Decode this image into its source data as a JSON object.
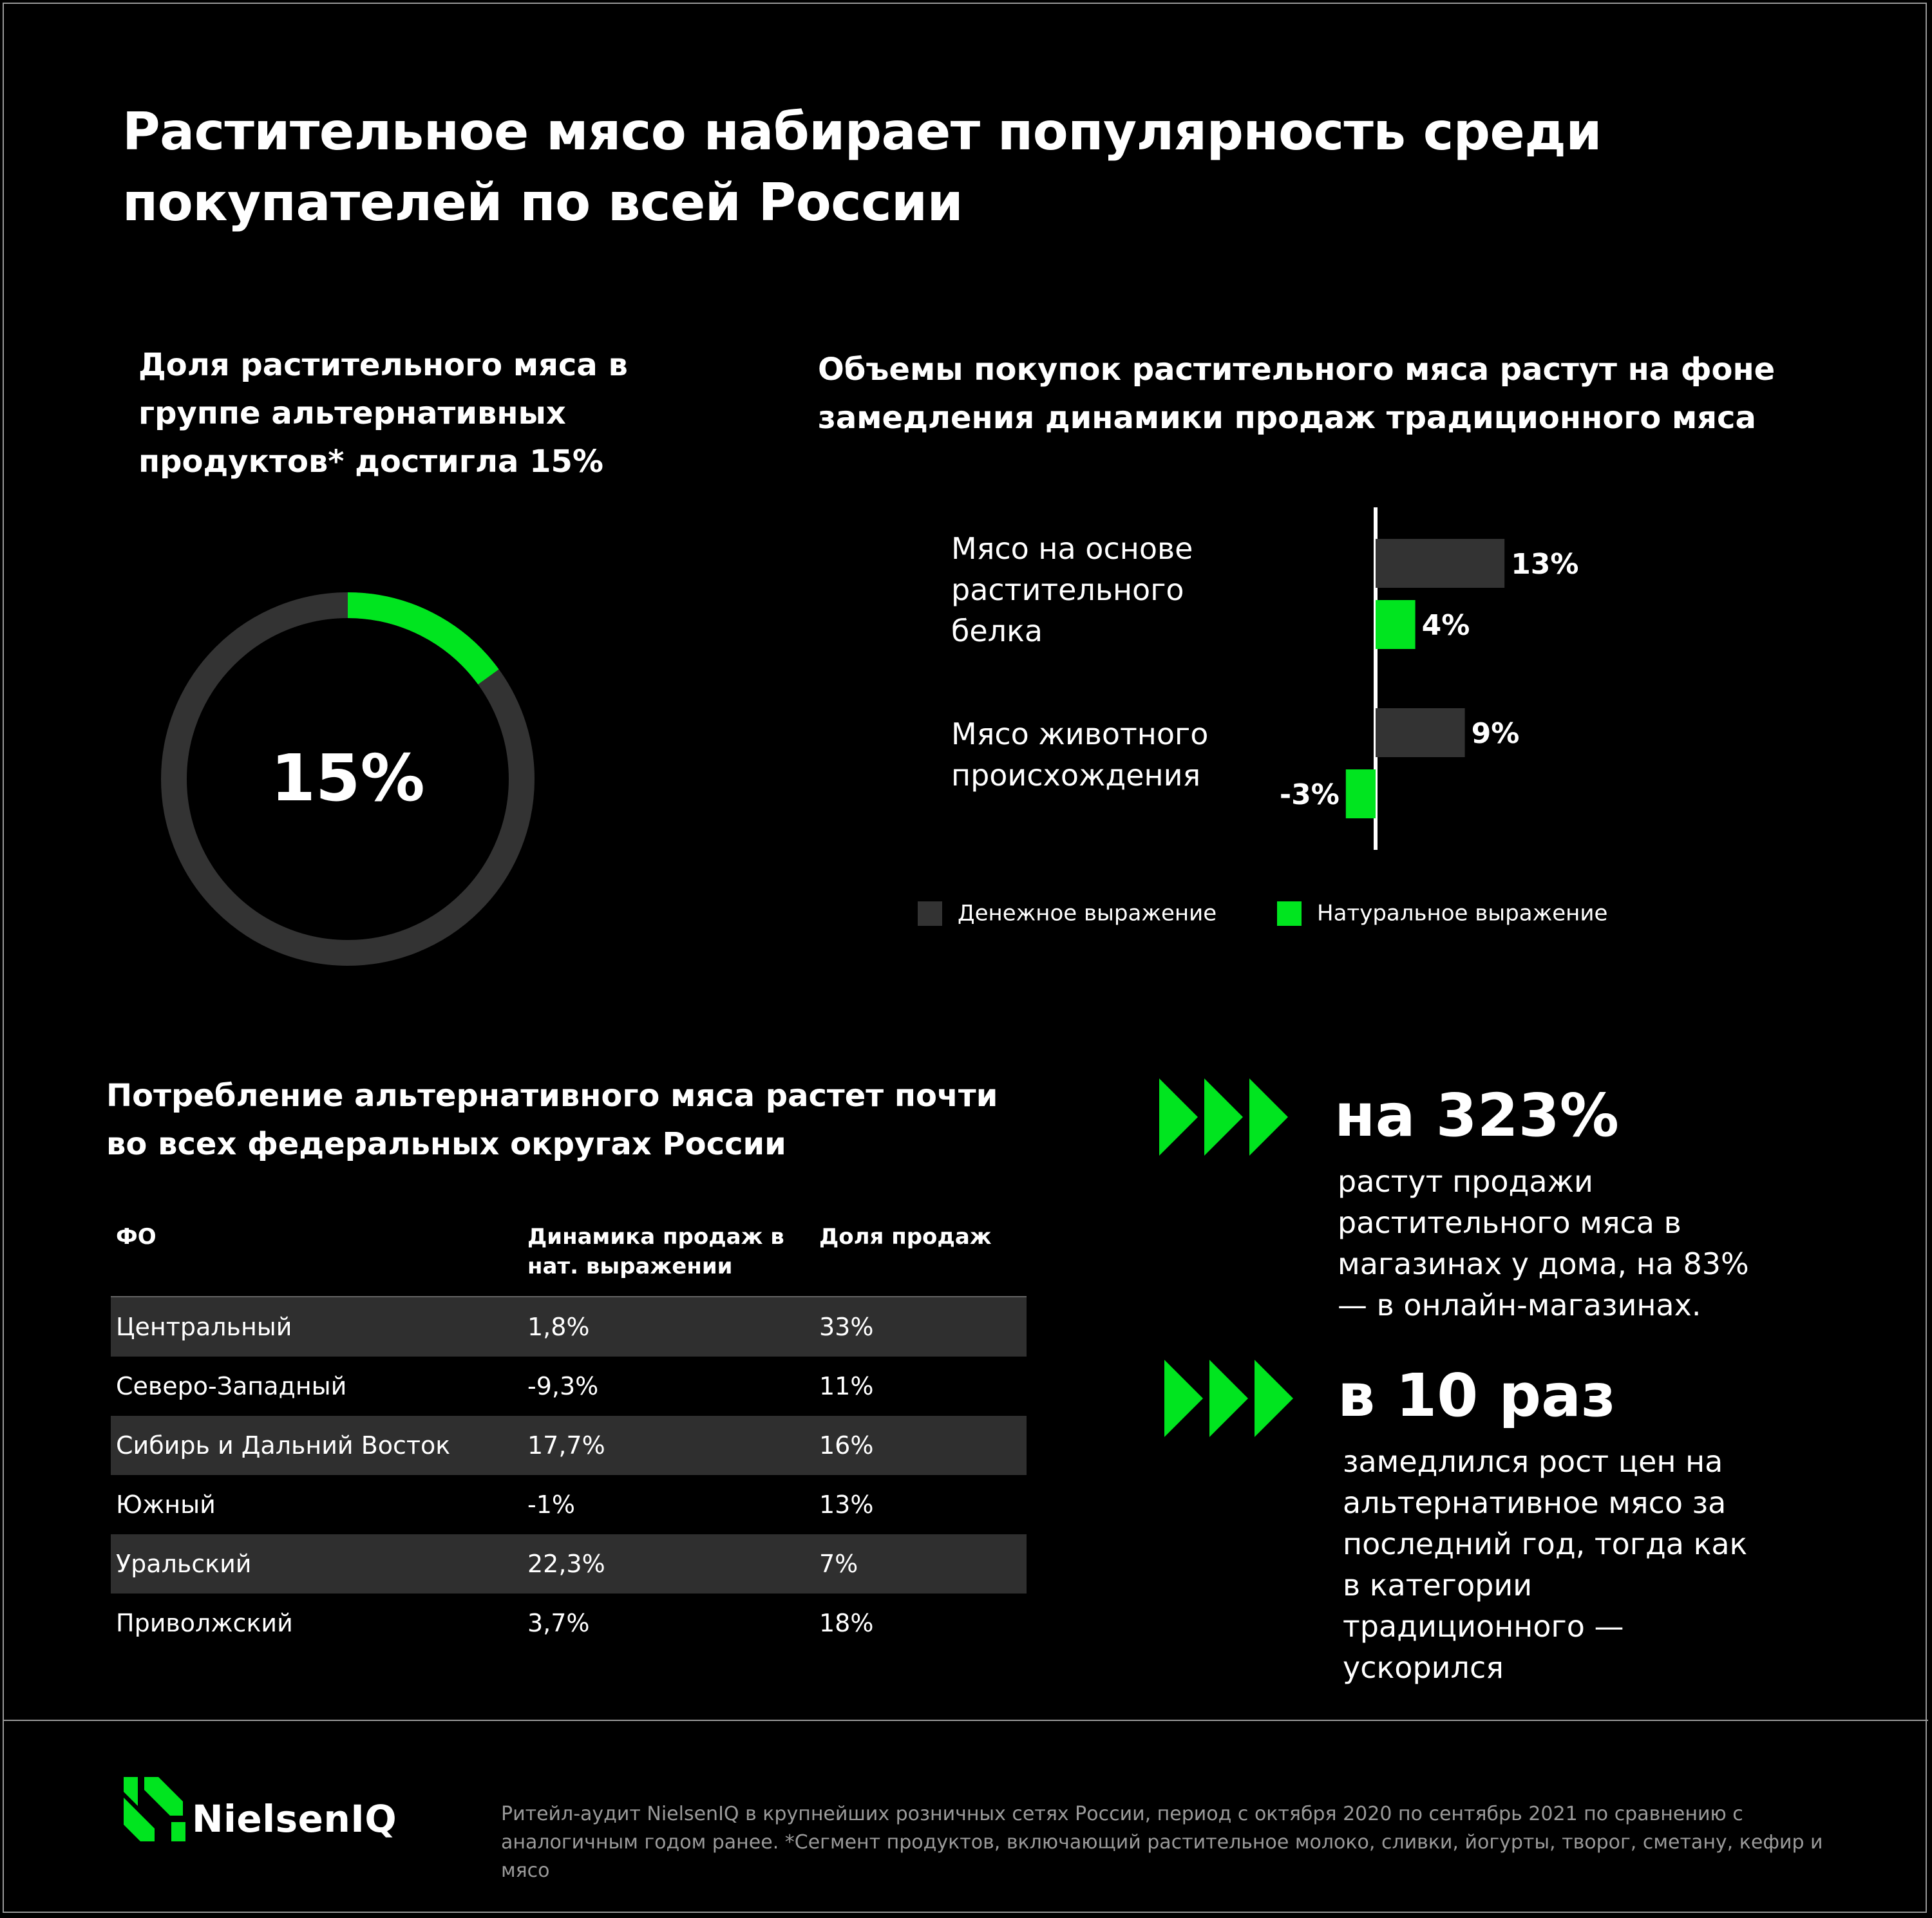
{
  "title": "Растительное мясо набирает популярность среди покупателей по всей России",
  "colors": {
    "accent": "#00e51f",
    "dark_bar": "#333333",
    "track": "#333333",
    "background": "#000000",
    "muted_text": "#9a9a9a"
  },
  "donut": {
    "title": "Доля растительного мяса в группе альтернативных продуктов* достигла 15%",
    "value_label": "15%"
  },
  "bars": {
    "title": "Объемы покупок растительного мяса растут на фоне замедления динамики продаж традиционного мяса",
    "legend": [
      "Денежное выражение",
      "Натуральное выражение"
    ]
  },
  "table": {
    "title": "Потребление альтернативного мяса растет почти во всех федеральных округах России",
    "headers": [
      "ФО",
      "Динамика продаж в нат. выражении",
      "Доля продаж"
    ],
    "rows": [
      [
        "Центральный",
        "1,8%",
        "33%"
      ],
      [
        "Северо-Западный",
        "-9,3%",
        "11%"
      ],
      [
        "Сибирь и Дальний Восток",
        "17,7%",
        "16%"
      ],
      [
        "Южный",
        "-1%",
        "13%"
      ],
      [
        "Уральский",
        "22,3%",
        "7%"
      ],
      [
        "Приволжский",
        "3,7%",
        "18%"
      ]
    ]
  },
  "stats": [
    {
      "icon": "triple-chevron-icon",
      "value": "на 323%",
      "description": "растут продажи растительного мяса в магазинах у дома, на 83% — в онлайн-магазинах."
    },
    {
      "icon": "triple-chevron-icon",
      "value": "в 10 раз",
      "description": "замедлился рост цен на альтернативное мясо за последний год, тогда как в категории традиционного — ускорился"
    }
  ],
  "footer": {
    "logo_text": "NielsenIQ",
    "footnote": "Ритейл-аудит NielsenIQ в крупнейших розничных сетях России, период с октября 2020 по сентябрь 2021 по сравнению с аналогичным годом ранее. *Сегмент продуктов, включающий растительное молоко, сливки, йогурты, творог, сметану, кефир и мясо"
  },
  "chart_data": [
    {
      "type": "pie",
      "title": "Доля растительного мяса в группе альтернативных продуктов* достигла 15%",
      "slices": [
        {
          "label": "Растительное мясо",
          "value": 15
        },
        {
          "label": "",
          "value": 85
        }
      ],
      "center_label": "15%"
    },
    {
      "type": "bar",
      "orientation": "horizontal",
      "title": "Объемы покупок растительного мяса растут на фоне замедления динамики продаж традиционного мяса",
      "categories": [
        "Мясо на основе растительного белка",
        "Мясо животного происхождения"
      ],
      "series": [
        {
          "name": "Денежное выражение",
          "values": [
            13,
            9
          ],
          "labels": [
            "13%",
            "9%"
          ]
        },
        {
          "name": "Натуральное выражение",
          "values": [
            4,
            -3
          ],
          "labels": [
            "4%",
            "-3%"
          ]
        }
      ],
      "xlim": [
        -3.5,
        15
      ],
      "legend": "bottom"
    }
  ]
}
